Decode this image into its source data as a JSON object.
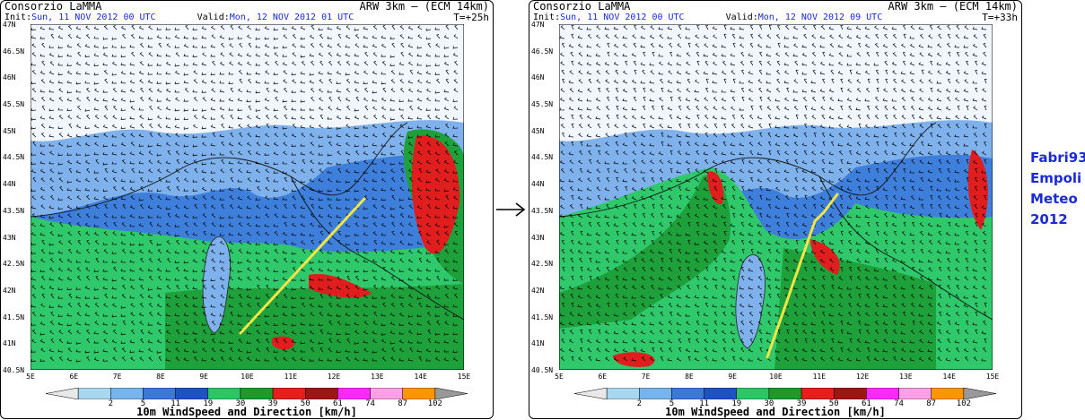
{
  "panels": [
    {
      "producer": "Consorzio LaMMA",
      "model": "ARW 3km – (ECM 14km)",
      "init_label": "Init:",
      "init_value": "Sun, 11 NOV 2012   00 UTC",
      "valid_label": "Valid:",
      "valid_value": "Mon, 12 NOV 2012   01 UTC",
      "lead": "T=+25h"
    },
    {
      "producer": "Consorzio LaMMA",
      "model": "ARW 3km – (ECM 14km)",
      "init_label": "Init:",
      "init_value": "Sun, 11 NOV 2012   00 UTC",
      "valid_label": "Valid:",
      "valid_value": "Mon, 12 NOV 2012   09 UTC",
      "lead": "T=+33h"
    }
  ],
  "lat_ticks": [
    "47N",
    "46.5N",
    "46N",
    "45.5N",
    "45N",
    "44.5N",
    "44N",
    "43.5N",
    "43N",
    "42.5N",
    "42N",
    "41.5N",
    "41N",
    "40.5N"
  ],
  "lon_ticks": [
    "5E",
    "6E",
    "7E",
    "8E",
    "9E",
    "10E",
    "11E",
    "12E",
    "13E",
    "14E",
    "15E"
  ],
  "colorbar": {
    "title": "10m WindSpeed and Direction [km/h]",
    "labels": [
      "2",
      "5",
      "11",
      "19",
      "30",
      "39",
      "50",
      "61",
      "74",
      "87",
      "102"
    ],
    "colors": [
      "#a8d8f0",
      "#78b4ec",
      "#3c78dc",
      "#1e50c8",
      "#28c864",
      "#1e9a2a",
      "#e61e1e",
      "#a01414",
      "#ff28ff",
      "#ffa0e6",
      "#ff9600"
    ]
  },
  "transition_arrow": "→",
  "signature": [
    "Fabri93",
    "Empoli",
    "Meteo",
    "2012"
  ],
  "palette": {
    "land_white": "#f2f6ff",
    "light_blue": "#7fb2ec",
    "mid_blue": "#3f7fdc",
    "green": "#2fc86a",
    "dark_green": "#1ea03a",
    "red": "#e01e1e",
    "line_yellow": "#f0e646",
    "text_blue": "#1a2bd6"
  }
}
